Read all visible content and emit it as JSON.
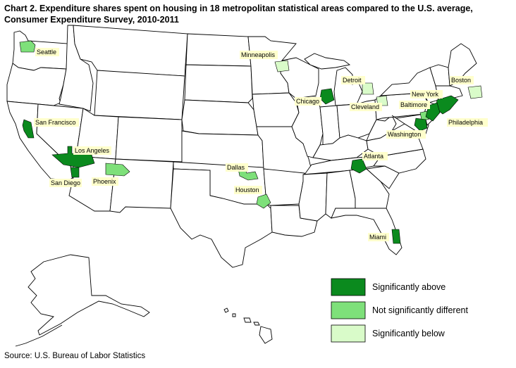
{
  "title_line1": "Chart 2. Expenditure shares spent on housing in 18 metropolitan statistical areas compared to the U.S. average,",
  "title_line2": "Consumer Expenditure Survey, 2010-2011",
  "source": "Source: U.S. Bureau of Labor Statistics",
  "colors": {
    "above": "#0b8a1e",
    "not_different": "#7ee07a",
    "below": "#d9fbc9",
    "state_fill": "#ffffff",
    "label_bg": "#ffffcc"
  },
  "legend": [
    {
      "key": "above",
      "label": "Significantly above"
    },
    {
      "key": "not_different",
      "label": "Not significantly different"
    },
    {
      "key": "below",
      "label": "Significantly below"
    }
  ],
  "metros": [
    {
      "name": "Seattle",
      "category": "not_different"
    },
    {
      "name": "Minneapolis",
      "category": "below"
    },
    {
      "name": "Detroit",
      "category": "below"
    },
    {
      "name": "Boston",
      "category": "below"
    },
    {
      "name": "New York",
      "category": "above"
    },
    {
      "name": "Chicago",
      "category": "above"
    },
    {
      "name": "Cleveland",
      "category": "below"
    },
    {
      "name": "Baltimore",
      "category": "not_different"
    },
    {
      "name": "Philadelphia",
      "category": "above"
    },
    {
      "name": "Washington",
      "category": "above"
    },
    {
      "name": "San Francisco",
      "category": "above"
    },
    {
      "name": "Los Angeles",
      "category": "above"
    },
    {
      "name": "San Diego",
      "category": "above"
    },
    {
      "name": "Phoenix",
      "category": "not_different"
    },
    {
      "name": "Dallas",
      "category": "not_different"
    },
    {
      "name": "Houston",
      "category": "not_different"
    },
    {
      "name": "Atlanta",
      "category": "above"
    },
    {
      "name": "Miami",
      "category": "above"
    }
  ]
}
